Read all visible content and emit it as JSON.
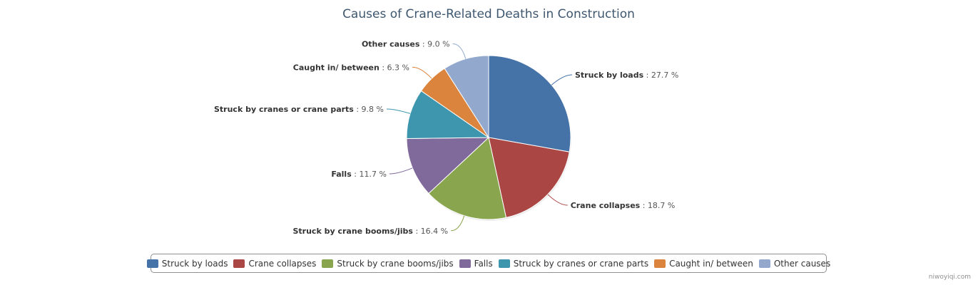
{
  "chart_data": {
    "type": "pie",
    "title": "Causes of Crane-Related Deaths in Construction",
    "value_suffix": " %",
    "slices": [
      {
        "name": "Struck by loads",
        "value": 27.7,
        "color": "#4572a7"
      },
      {
        "name": "Crane collapses",
        "value": 18.7,
        "color": "#aa4643"
      },
      {
        "name": "Struck by crane booms/jibs",
        "value": 16.4,
        "color": "#89a54e"
      },
      {
        "name": "Falls",
        "value": 11.7,
        "color": "#80699b"
      },
      {
        "name": "Struck by cranes or crane parts",
        "value": 9.8,
        "color": "#3d96ae"
      },
      {
        "name": "Caught in/ between",
        "value": 6.3,
        "color": "#db843d"
      },
      {
        "name": "Other causes",
        "value": 9.0,
        "color": "#92a8cd"
      }
    ],
    "legend_position": "bottom-center"
  },
  "credit": "niwoyiqi.com"
}
